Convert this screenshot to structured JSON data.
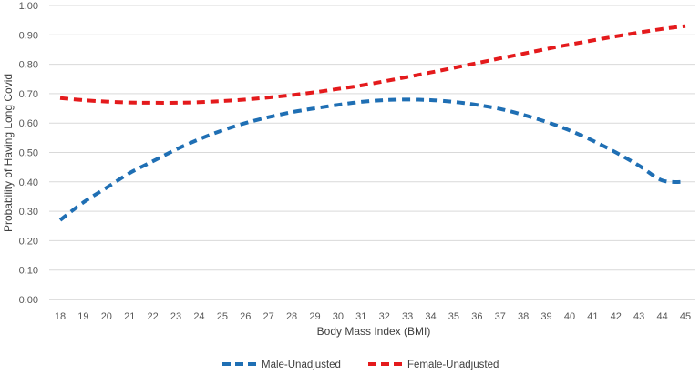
{
  "chart_data": {
    "type": "line",
    "title": "",
    "xlabel": "Body Mass Index (BMI)",
    "ylabel": "Probability of Having Long Covid",
    "x": [
      18,
      19,
      20,
      21,
      22,
      23,
      24,
      25,
      26,
      27,
      28,
      29,
      30,
      31,
      32,
      33,
      34,
      35,
      36,
      37,
      38,
      39,
      40,
      41,
      42,
      43,
      44,
      45
    ],
    "x_tick_labels": [
      "18",
      "19",
      "20",
      "21",
      "22",
      "23",
      "24",
      "25",
      "26",
      "27",
      "28",
      "29",
      "30",
      "31",
      "32",
      "33",
      "34",
      "35",
      "36",
      "37",
      "38",
      "39",
      "40",
      "41",
      "42",
      "43",
      "44",
      "45"
    ],
    "ylim": [
      0,
      1
    ],
    "y_ticks": [
      0,
      0.1,
      0.2,
      0.3,
      0.4,
      0.5,
      0.6,
      0.7,
      0.8,
      0.9,
      1.0
    ],
    "y_tick_labels": [
      "0.00",
      "0.10",
      "0.20",
      "0.30",
      "0.40",
      "0.50",
      "0.60",
      "0.70",
      "0.80",
      "0.90",
      "1.00"
    ],
    "grid": "horizontal",
    "legend_position": "bottom",
    "series": [
      {
        "name": "Male-Unadjusted",
        "color": "#1f6fb4",
        "style": "dashed",
        "values": [
          0.27,
          0.33,
          0.38,
          0.43,
          0.47,
          0.51,
          0.545,
          0.575,
          0.6,
          0.62,
          0.637,
          0.65,
          0.662,
          0.672,
          0.678,
          0.68,
          0.678,
          0.672,
          0.662,
          0.648,
          0.628,
          0.604,
          0.575,
          0.54,
          0.5,
          0.455,
          0.405,
          0.4
        ]
      },
      {
        "name": "Female-Unadjusted",
        "color": "#e41a1c",
        "style": "dashed",
        "values": [
          0.685,
          0.678,
          0.673,
          0.67,
          0.669,
          0.669,
          0.671,
          0.675,
          0.68,
          0.687,
          0.695,
          0.705,
          0.716,
          0.728,
          0.742,
          0.757,
          0.772,
          0.788,
          0.804,
          0.82,
          0.836,
          0.852,
          0.867,
          0.881,
          0.895,
          0.908,
          0.92,
          0.93
        ]
      }
    ]
  }
}
